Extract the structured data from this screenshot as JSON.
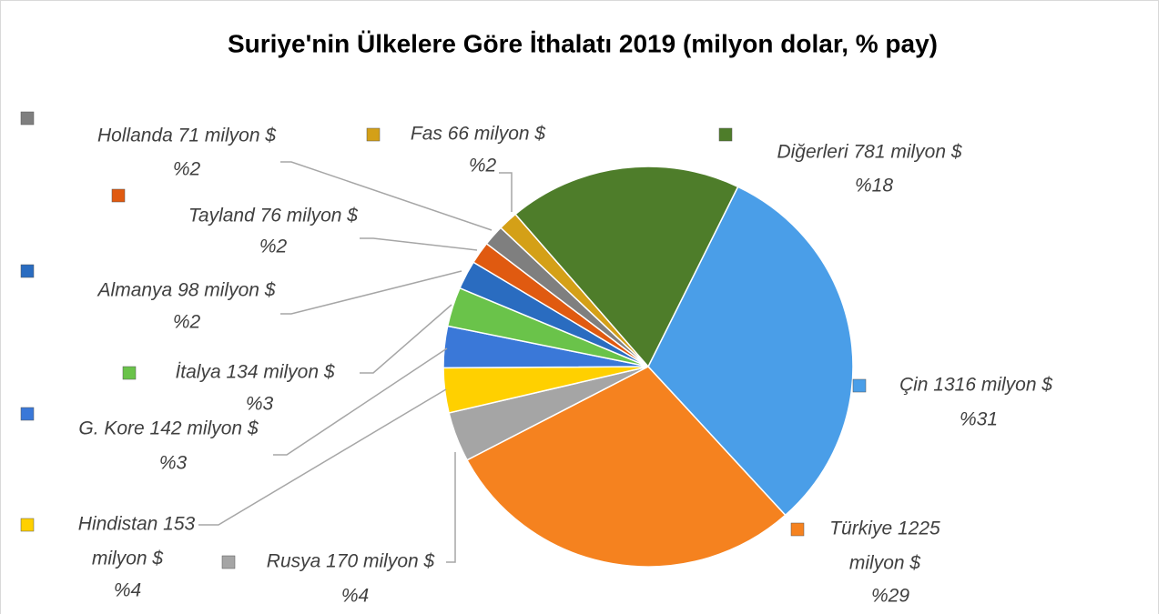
{
  "chart_data": {
    "type": "pie",
    "title": "Suriye'nin Ülkelere Göre İthalatı 2019 (milyon dolar, % pay)",
    "categories": [
      "Çin",
      "Türkiye",
      "Rusya",
      "Hindistan",
      "G. Kore",
      "İtalya",
      "Almanya",
      "Tayland",
      "Hollanda",
      "Fas",
      "Diğerleri"
    ],
    "values": [
      1316,
      1225,
      170,
      153,
      142,
      134,
      98,
      76,
      71,
      66,
      781
    ],
    "value_labels": [
      [
        "Çin 1316 milyon $"
      ],
      [
        "Türkiye 1225",
        "milyon $"
      ],
      [
        "Rusya 170 milyon $"
      ],
      [
        "Hindistan 153",
        "milyon $"
      ],
      [
        "G. Kore 142 milyon $"
      ],
      [
        "İtalya 134 milyon $"
      ],
      [
        "Almanya 98 milyon $"
      ],
      [
        "Tayland 76 milyon $"
      ],
      [
        "Hollanda 71 milyon $"
      ],
      [
        "Fas 66 milyon $"
      ],
      [
        "Diğerleri 781 milyon $"
      ]
    ],
    "percents": [
      31,
      29,
      4,
      4,
      3,
      3,
      2,
      2,
      2,
      2,
      18
    ],
    "percent_labels": [
      "%31",
      "%29",
      "%4",
      "%4",
      "%3",
      "%3",
      "%2",
      "%2",
      "%2",
      "%2",
      "%18"
    ],
    "colors": [
      "#4a9ee8",
      "#f5821f",
      "#a5a5a5",
      "#ffd000",
      "#3a78d8",
      "#6ac34a",
      "#2a6cc0",
      "#e05a10",
      "#7f7f7f",
      "#d4a017",
      "#4e7d2a"
    ]
  }
}
